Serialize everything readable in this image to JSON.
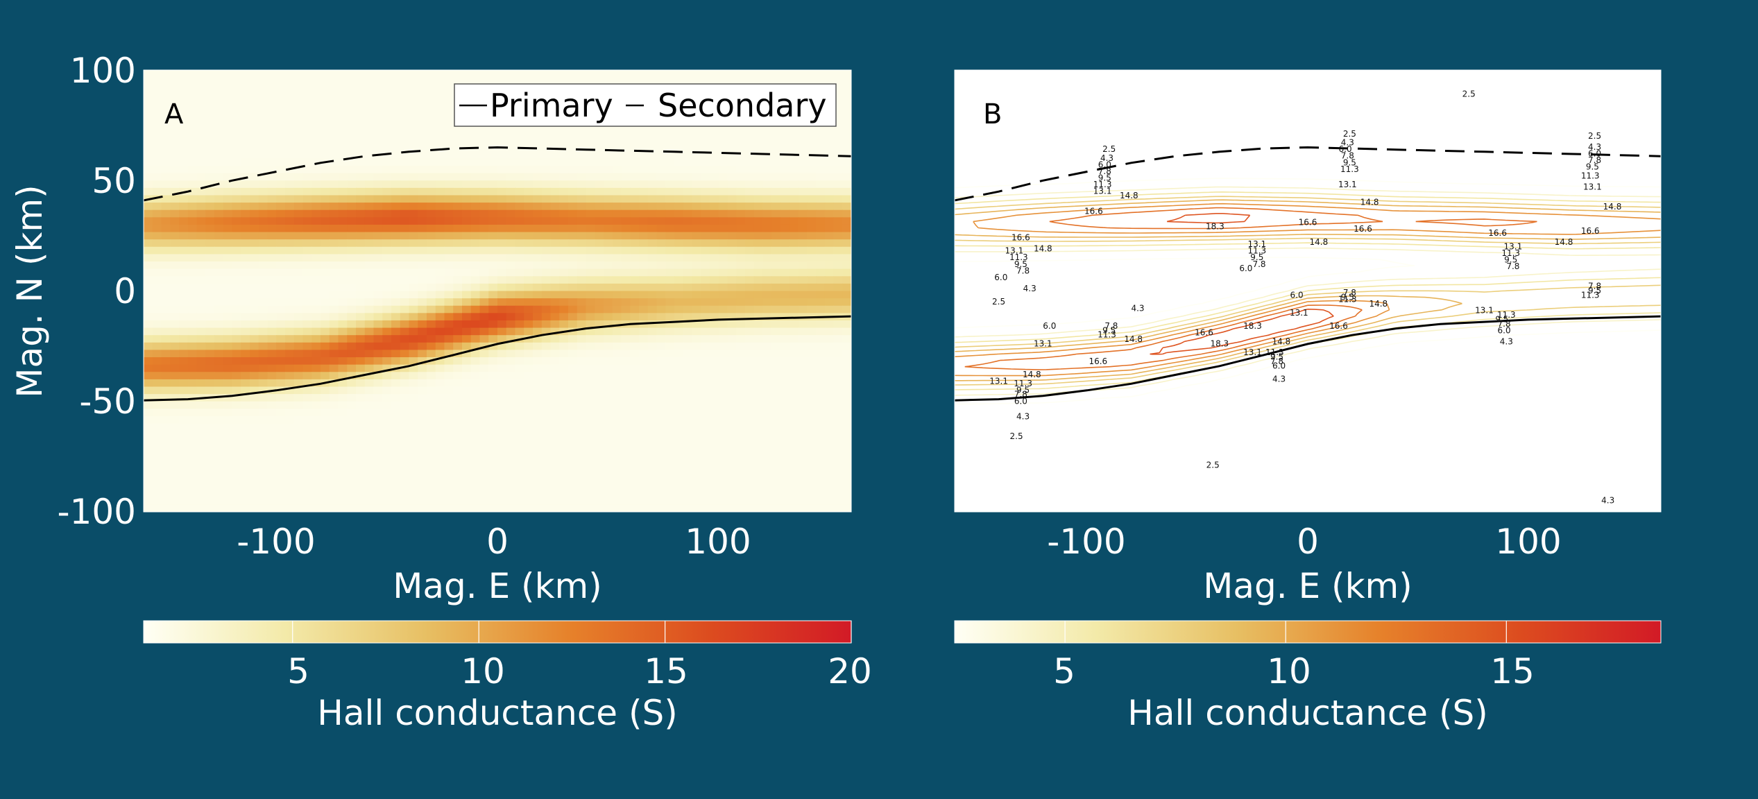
{
  "colors": {
    "background": "#0a4d68",
    "colormap": [
      "#fffff5",
      "#f3eaa9",
      "#e7bf63",
      "#e6822b",
      "#dc4c1f",
      "#d21a26"
    ]
  },
  "chart_data": [
    {
      "type": "heatmap",
      "panel_label": "A",
      "xlabel": "Mag. E (km)",
      "ylabel": "Mag. N (km)",
      "xlim": [
        -160,
        160
      ],
      "ylim": [
        -100,
        100
      ],
      "xticks": [
        "-100",
        "0",
        "100"
      ],
      "xtick_values": [
        -100,
        0,
        100
      ],
      "yticks": [
        "100",
        "50",
        "0",
        "-50",
        "-100"
      ],
      "ytick_values": [
        100,
        50,
        0,
        -50,
        -100
      ],
      "legend": {
        "position": "top-right",
        "entries": [
          "Primary",
          "Secondary"
        ]
      },
      "colorbar": {
        "label": "Hall conductance (S)",
        "range": [
          1,
          20
        ],
        "ticks": [
          "5",
          "10",
          "15",
          "20"
        ],
        "tick_values": [
          5,
          10,
          15,
          20
        ]
      },
      "bands": [
        {
          "x": [
            -160,
            -120,
            -80,
            -40,
            0,
            40,
            80,
            120,
            160
          ],
          "y": [
            30,
            31,
            32,
            33,
            33,
            32,
            31,
            30,
            30
          ],
          "peak": [
            11,
            13,
            14.5,
            15.5,
            14,
            13,
            13.5,
            13,
            12
          ]
        },
        {
          "x": [
            -160,
            -120,
            -80,
            -40,
            0,
            40,
            80,
            120,
            160
          ],
          "y": [
            -34,
            -33,
            -30,
            -22,
            -12,
            -7,
            -5,
            -3,
            -2
          ],
          "peak": [
            13,
            14,
            14.5,
            16,
            16.5,
            11,
            9,
            9,
            9
          ]
        }
      ],
      "series": [
        {
          "name": "Primary",
          "style": "solid",
          "x": [
            -160,
            -140,
            -120,
            -100,
            -80,
            -60,
            -40,
            -20,
            0,
            20,
            40,
            60,
            80,
            100,
            120,
            140,
            160
          ],
          "y": [
            -49.5,
            -49,
            -47.5,
            -45,
            -42,
            -38,
            -34,
            -29,
            -24,
            -20,
            -17,
            -15,
            -14,
            -13,
            -12.5,
            -12,
            -11.5
          ]
        },
        {
          "name": "Secondary",
          "style": "dashed",
          "x": [
            -160,
            -140,
            -120,
            -100,
            -80,
            -60,
            -40,
            -20,
            0,
            20,
            40,
            60,
            80,
            100,
            120,
            140,
            160
          ],
          "y": [
            41,
            45,
            50,
            54,
            58,
            61,
            63,
            64.5,
            65,
            64.5,
            64,
            63.5,
            63,
            62.5,
            62,
            61.5,
            61
          ]
        }
      ]
    },
    {
      "type": "heatmap",
      "panel_label": "B",
      "xlabel": "Mag. E (km)",
      "xlim": [
        -160,
        160
      ],
      "ylim": [
        -100,
        100
      ],
      "xticks": [
        "-100",
        "0",
        "100"
      ],
      "xtick_values": [
        -100,
        0,
        100
      ],
      "colorbar": {
        "label": "Hall conductance (S)",
        "range": [
          2.5,
          18.5
        ],
        "ticks": [
          "5",
          "10",
          "15"
        ],
        "tick_values": [
          5,
          10,
          15
        ]
      },
      "contour_levels": [
        2.5,
        4.3,
        6.0,
        7.8,
        9.5,
        11.3,
        13.1,
        14.8,
        16.6,
        18.3
      ],
      "contour_labels": [
        {
          "x": -130,
          "y": 24,
          "text": "16.6"
        },
        {
          "x": -120,
          "y": 19,
          "text": "14.8"
        },
        {
          "x": -133,
          "y": 18,
          "text": "13.1"
        },
        {
          "x": -131,
          "y": 15,
          "text": "11.3"
        },
        {
          "x": -130,
          "y": 12,
          "text": "9.5"
        },
        {
          "x": -129,
          "y": 9,
          "text": "7.8"
        },
        {
          "x": -139,
          "y": 6,
          "text": "6.0"
        },
        {
          "x": -126,
          "y": 1,
          "text": "4.3"
        },
        {
          "x": -140,
          "y": -5,
          "text": "2.5"
        },
        {
          "x": -90,
          "y": 64,
          "text": "2.5"
        },
        {
          "x": -91,
          "y": 60,
          "text": "4.3"
        },
        {
          "x": -92,
          "y": 57,
          "text": "6.0"
        },
        {
          "x": -92,
          "y": 54,
          "text": "7.8"
        },
        {
          "x": -92,
          "y": 51,
          "text": "9.5"
        },
        {
          "x": -93,
          "y": 48,
          "text": "11.3"
        },
        {
          "x": -93,
          "y": 45,
          "text": "13.1"
        },
        {
          "x": -81,
          "y": 43,
          "text": "14.8"
        },
        {
          "x": -97,
          "y": 36,
          "text": "16.6"
        },
        {
          "x": -42,
          "y": 29,
          "text": "18.3"
        },
        {
          "x": -23,
          "y": 21,
          "text": "13.1"
        },
        {
          "x": -23,
          "y": 18,
          "text": "11.3"
        },
        {
          "x": -23,
          "y": 15,
          "text": "9.5"
        },
        {
          "x": -22,
          "y": 12,
          "text": "7.8"
        },
        {
          "x": -28,
          "y": 10,
          "text": "6.0"
        },
        {
          "x": 0,
          "y": 31,
          "text": "16.6"
        },
        {
          "x": 5,
          "y": 22,
          "text": "14.8"
        },
        {
          "x": 25,
          "y": 28,
          "text": "16.6"
        },
        {
          "x": 19,
          "y": 71,
          "text": "2.5"
        },
        {
          "x": 18,
          "y": 67,
          "text": "4.3"
        },
        {
          "x": 17,
          "y": 64,
          "text": "6.0"
        },
        {
          "x": 18,
          "y": 61,
          "text": "7.8"
        },
        {
          "x": 19,
          "y": 58,
          "text": "9.5"
        },
        {
          "x": 19,
          "y": 55,
          "text": "11.3"
        },
        {
          "x": 18,
          "y": 48,
          "text": "13.1"
        },
        {
          "x": 28,
          "y": 40,
          "text": "14.8"
        },
        {
          "x": 73,
          "y": 89,
          "text": "2.5"
        },
        {
          "x": 86,
          "y": 26,
          "text": "16.6"
        },
        {
          "x": 93,
          "y": 20,
          "text": "13.1"
        },
        {
          "x": 92,
          "y": 17,
          "text": "11.3"
        },
        {
          "x": 92,
          "y": 14,
          "text": "9.5"
        },
        {
          "x": 93,
          "y": 11,
          "text": "7.8"
        },
        {
          "x": 116,
          "y": 22,
          "text": "14.8"
        },
        {
          "x": 130,
          "y": 70,
          "text": "2.5"
        },
        {
          "x": 130,
          "y": 65,
          "text": "4.3"
        },
        {
          "x": 130,
          "y": 62,
          "text": "6.0"
        },
        {
          "x": 130,
          "y": 59,
          "text": "7.8"
        },
        {
          "x": 129,
          "y": 56,
          "text": "9.5"
        },
        {
          "x": 128,
          "y": 52,
          "text": "11.3"
        },
        {
          "x": 129,
          "y": 47,
          "text": "13.1"
        },
        {
          "x": 138,
          "y": 38,
          "text": "14.8"
        },
        {
          "x": 128,
          "y": 27,
          "text": "16.6"
        },
        {
          "x": 130,
          "y": 2,
          "text": "7.8"
        },
        {
          "x": 130,
          "y": 0,
          "text": "9.5"
        },
        {
          "x": 128,
          "y": -2,
          "text": "11.3"
        },
        {
          "x": -5,
          "y": -2,
          "text": "6.0"
        },
        {
          "x": 19,
          "y": -1,
          "text": "7.8"
        },
        {
          "x": 18,
          "y": -3,
          "text": "9.5"
        },
        {
          "x": 18,
          "y": -4,
          "text": "11.3"
        },
        {
          "x": 32,
          "y": -6,
          "text": "14.8"
        },
        {
          "x": 80,
          "y": -9,
          "text": "13.1"
        },
        {
          "x": 90,
          "y": -11,
          "text": "11.3"
        },
        {
          "x": 88,
          "y": -13,
          "text": "9.5"
        },
        {
          "x": 89,
          "y": -15,
          "text": "7.8"
        },
        {
          "x": 89,
          "y": -18,
          "text": "6.0"
        },
        {
          "x": 90,
          "y": -23,
          "text": "4.3"
        },
        {
          "x": 14,
          "y": -16,
          "text": "16.6"
        },
        {
          "x": -77,
          "y": -8,
          "text": "4.3"
        },
        {
          "x": -117,
          "y": -16,
          "text": "6.0"
        },
        {
          "x": -89,
          "y": -16,
          "text": "7.8"
        },
        {
          "x": -90,
          "y": -18,
          "text": "9.5"
        },
        {
          "x": -91,
          "y": -20,
          "text": "11.3"
        },
        {
          "x": -120,
          "y": -24,
          "text": "13.1"
        },
        {
          "x": -79,
          "y": -22,
          "text": "14.8"
        },
        {
          "x": -47,
          "y": -19,
          "text": "16.6"
        },
        {
          "x": -25,
          "y": -16,
          "text": "18.3"
        },
        {
          "x": -4,
          "y": -10,
          "text": "13.1"
        },
        {
          "x": -40,
          "y": -24,
          "text": "18.3"
        },
        {
          "x": -12,
          "y": -23,
          "text": "14.8"
        },
        {
          "x": -25,
          "y": -28,
          "text": "13.1"
        },
        {
          "x": -15,
          "y": -28,
          "text": "11.3"
        },
        {
          "x": -14,
          "y": -30,
          "text": "9.5"
        },
        {
          "x": -14,
          "y": -32,
          "text": "7.8"
        },
        {
          "x": -13,
          "y": -34,
          "text": "6.0"
        },
        {
          "x": -13,
          "y": -40,
          "text": "4.3"
        },
        {
          "x": -95,
          "y": -32,
          "text": "16.6"
        },
        {
          "x": -125,
          "y": -38,
          "text": "14.8"
        },
        {
          "x": -140,
          "y": -41,
          "text": "13.1"
        },
        {
          "x": -129,
          "y": -42,
          "text": "11.3"
        },
        {
          "x": -129,
          "y": -45,
          "text": "9.5"
        },
        {
          "x": -130,
          "y": -47,
          "text": "7.8"
        },
        {
          "x": -130,
          "y": -50,
          "text": "6.0"
        },
        {
          "x": -129,
          "y": -57,
          "text": "4.3"
        },
        {
          "x": -132,
          "y": -66,
          "text": "2.5"
        },
        {
          "x": -43,
          "y": -79,
          "text": "2.5"
        },
        {
          "x": 136,
          "y": -95,
          "text": "4.3"
        }
      ],
      "series": [
        {
          "name": "Primary",
          "style": "solid",
          "x": [
            -160,
            -140,
            -120,
            -100,
            -80,
            -60,
            -40,
            -20,
            0,
            20,
            40,
            60,
            80,
            100,
            120,
            140,
            160
          ],
          "y": [
            -49.5,
            -49,
            -47.5,
            -45,
            -42,
            -38,
            -34,
            -29,
            -24,
            -20,
            -17,
            -15,
            -14,
            -13,
            -12.5,
            -12,
            -11.5
          ]
        },
        {
          "name": "Secondary",
          "style": "dashed",
          "x": [
            -160,
            -140,
            -120,
            -100,
            -80,
            -60,
            -40,
            -20,
            0,
            20,
            40,
            60,
            80,
            100,
            120,
            140,
            160
          ],
          "y": [
            41,
            45,
            50,
            54,
            58,
            61,
            63,
            64.5,
            65,
            64.5,
            64,
            63.5,
            63,
            62.5,
            62,
            61.5,
            61
          ]
        }
      ]
    }
  ]
}
